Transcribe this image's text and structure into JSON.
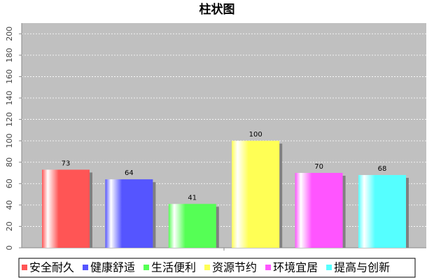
{
  "chart_data": {
    "type": "bar",
    "title": "柱状图",
    "categories": [
      null
    ],
    "series": [
      {
        "name": "安全耐久",
        "color": "#ff5555",
        "values": [
          73
        ]
      },
      {
        "name": "健康舒适",
        "color": "#5555ff",
        "values": [
          64
        ]
      },
      {
        "name": "生活便利",
        "color": "#55ff55",
        "values": [
          41
        ]
      },
      {
        "name": "资源节约",
        "color": "#ffff55",
        "values": [
          100
        ]
      },
      {
        "name": "环境宜居",
        "color": "#ff55ff",
        "values": [
          70
        ]
      },
      {
        "name": "提高与创新",
        "color": "#55ffff",
        "values": [
          68
        ]
      }
    ],
    "ylim": [
      0,
      210
    ],
    "yticks": [
      0,
      20,
      40,
      60,
      80,
      100,
      120,
      140,
      160,
      180,
      200
    ],
    "grid": true,
    "legend": "bottom"
  }
}
